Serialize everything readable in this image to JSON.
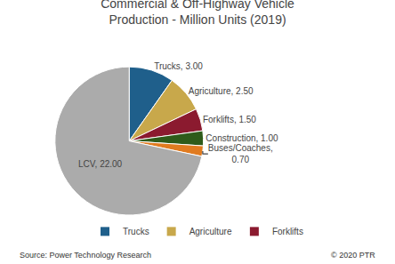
{
  "chart_data": {
    "type": "pie",
    "title": "Commercial & Off-Highway Vehicle\nProduction - Million Units (2019)",
    "categories": [
      "Trucks",
      "Agriculture",
      "Forklifts",
      "Construction",
      "Buses/Coaches",
      "LCV"
    ],
    "values": [
      3.0,
      2.5,
      1.5,
      1.0,
      0.7,
      22.0
    ],
    "value_labels": [
      "Trucks, 3.00",
      "Agriculture, 2.50",
      "Forklifts, 1.50",
      "Construction, 1.00",
      "Buses/Coaches,\n0.70",
      "LCV, 22.00"
    ],
    "colors": [
      "#1F5F8B",
      "#C8A84B",
      "#8B1A2F",
      "#2E5B1A",
      "#E07B20",
      "#ABABAB"
    ],
    "data_labels": true,
    "legend": "bottom",
    "legend_items": [
      "Trucks",
      "Agriculture",
      "Forklifts"
    ],
    "annotations": [
      "Source: Power Technology Research",
      "© 2020 PTR"
    ]
  }
}
